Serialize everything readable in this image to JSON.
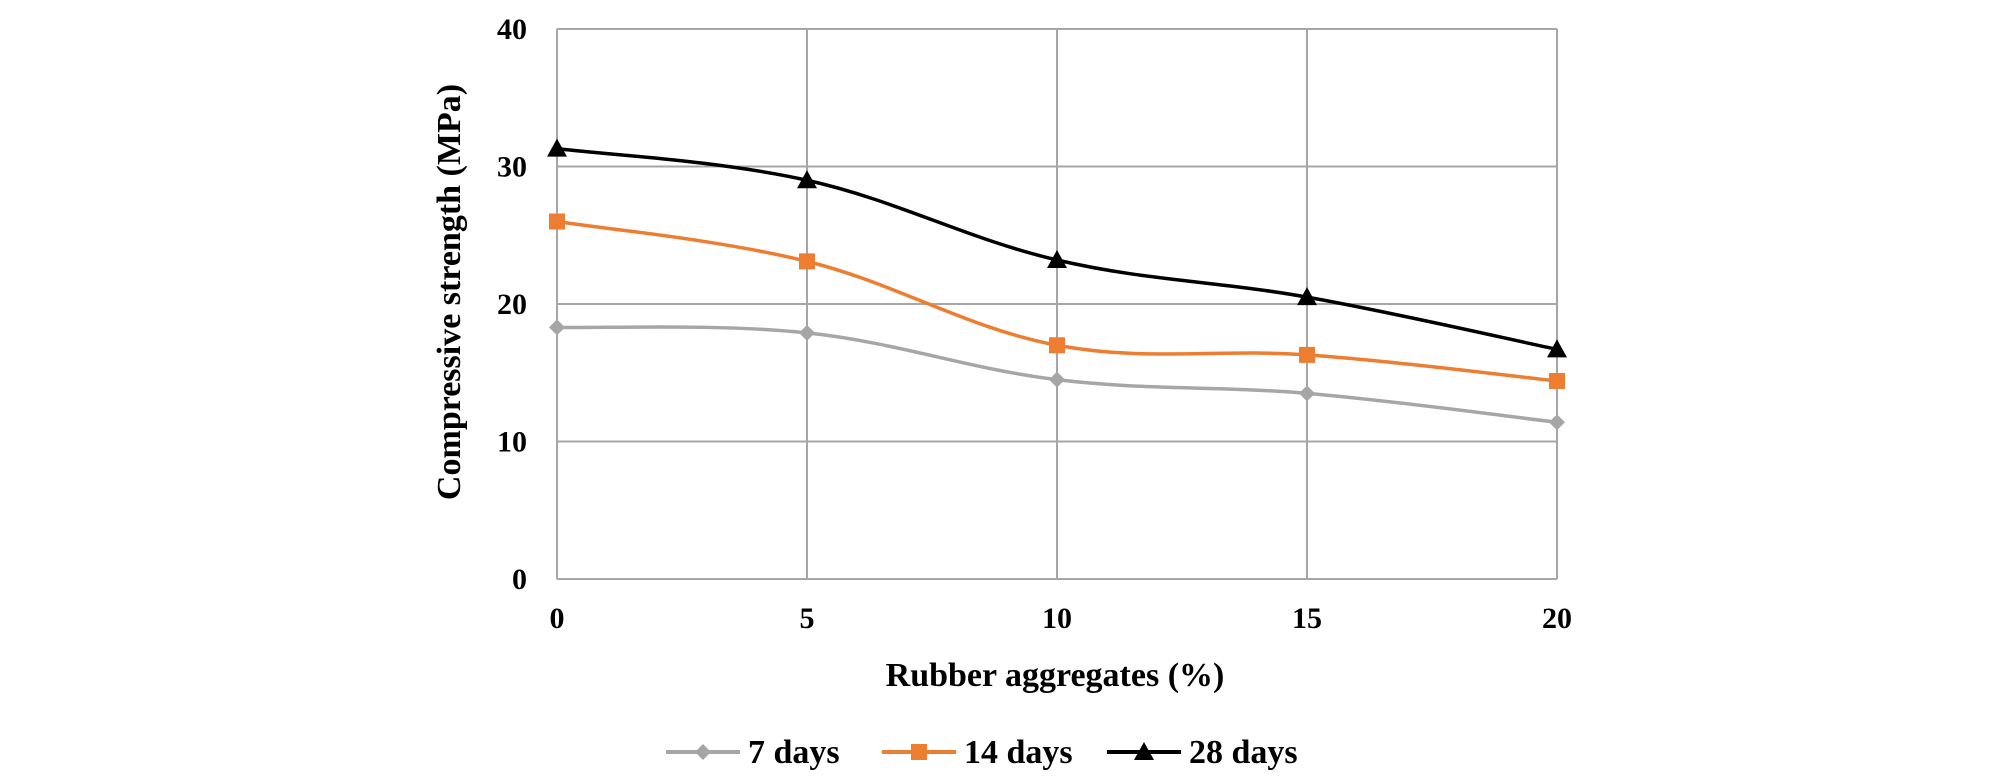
{
  "chart_data": {
    "type": "line",
    "x": [
      0,
      5,
      10,
      15,
      20
    ],
    "xlabel": "Rubber aggregates (%)",
    "ylabel": "Compressive strength (MPa)",
    "xlim": [
      0,
      20
    ],
    "ylim": [
      0,
      40
    ],
    "x_ticks": [
      "0",
      "5",
      "10",
      "15",
      "20"
    ],
    "y_ticks": [
      "0",
      "10",
      "20",
      "30",
      "40"
    ],
    "grid": true,
    "legend_position": "bottom",
    "smooth": true,
    "series": [
      {
        "name": "7 days",
        "values": [
          18.3,
          17.9,
          14.5,
          13.5,
          11.4
        ],
        "color": "#A6A6A6",
        "marker": "diamond"
      },
      {
        "name": "14 days",
        "values": [
          26.0,
          23.1,
          17.0,
          16.3,
          14.4
        ],
        "color": "#ED7D31",
        "marker": "square"
      },
      {
        "name": "28 days",
        "values": [
          31.3,
          29.0,
          23.2,
          20.5,
          16.7
        ],
        "color": "#000000",
        "marker": "triangle"
      }
    ]
  }
}
